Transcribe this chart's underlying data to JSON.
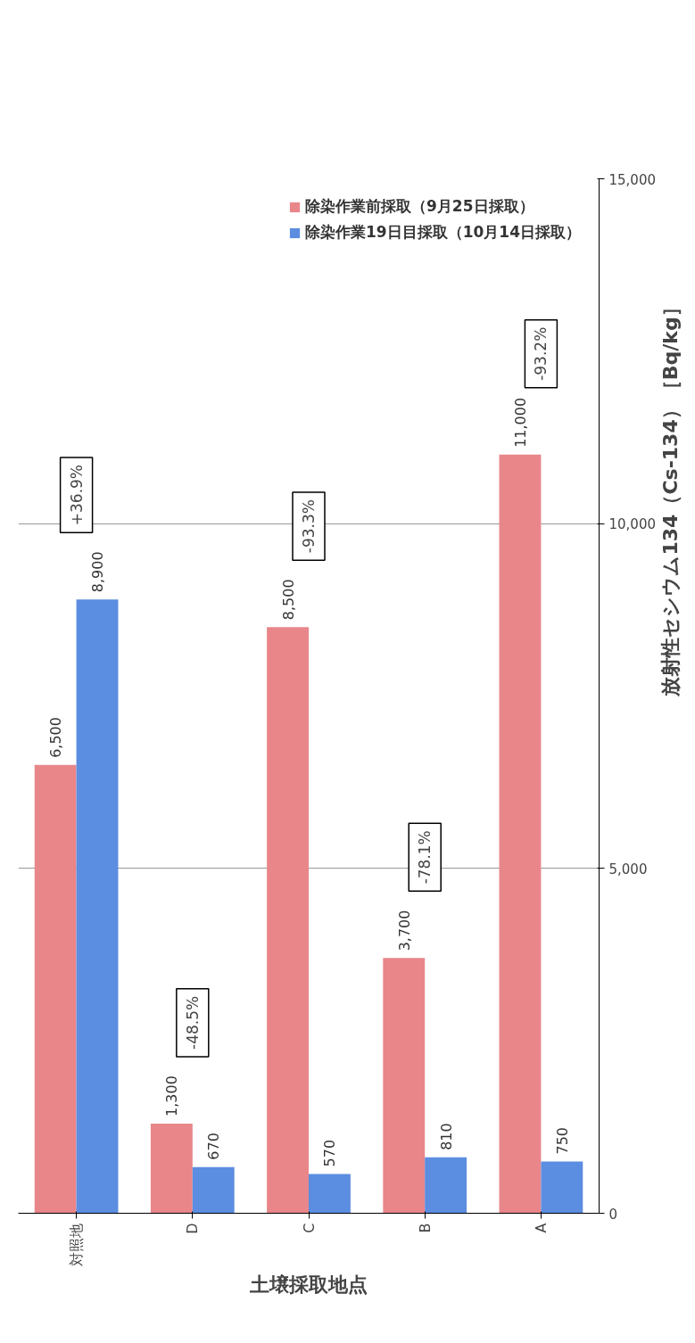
{
  "chart_data": {
    "type": "bar",
    "xlabel": "土壌採取地点",
    "ylabel": "放射性セシウム134（Cs-134）［Bq/kg］",
    "categories": [
      "対照地",
      "D",
      "C",
      "B",
      "A"
    ],
    "series": [
      {
        "name": "除染作業前採取（9月25日採取）",
        "color": "#e8868a",
        "values": [
          6500,
          1300,
          8500,
          3700,
          11000
        ],
        "value_labels": [
          "6,500",
          "1,300",
          "8,500",
          "3,700",
          "11,000"
        ]
      },
      {
        "name": "除染作業19日目採取（10月14日採取）",
        "color": "#5b8de0",
        "values": [
          8900,
          670,
          570,
          810,
          750
        ],
        "value_labels": [
          "8,900",
          "670",
          "570",
          "810",
          "750"
        ]
      }
    ],
    "ylim": [
      0,
      15000
    ],
    "yticks": [
      0,
      {
        "value": 5000,
        "label": "5,000"
      },
      {
        "value": 10000,
        "label": "10,000"
      },
      {
        "value": 15000,
        "label": "15,000"
      }
    ],
    "grid": "y",
    "legend": "top right",
    "annotations": [
      "+36.9%",
      "-48.5%",
      "-93.3%",
      "-78.1%",
      "-93.2%"
    ]
  }
}
